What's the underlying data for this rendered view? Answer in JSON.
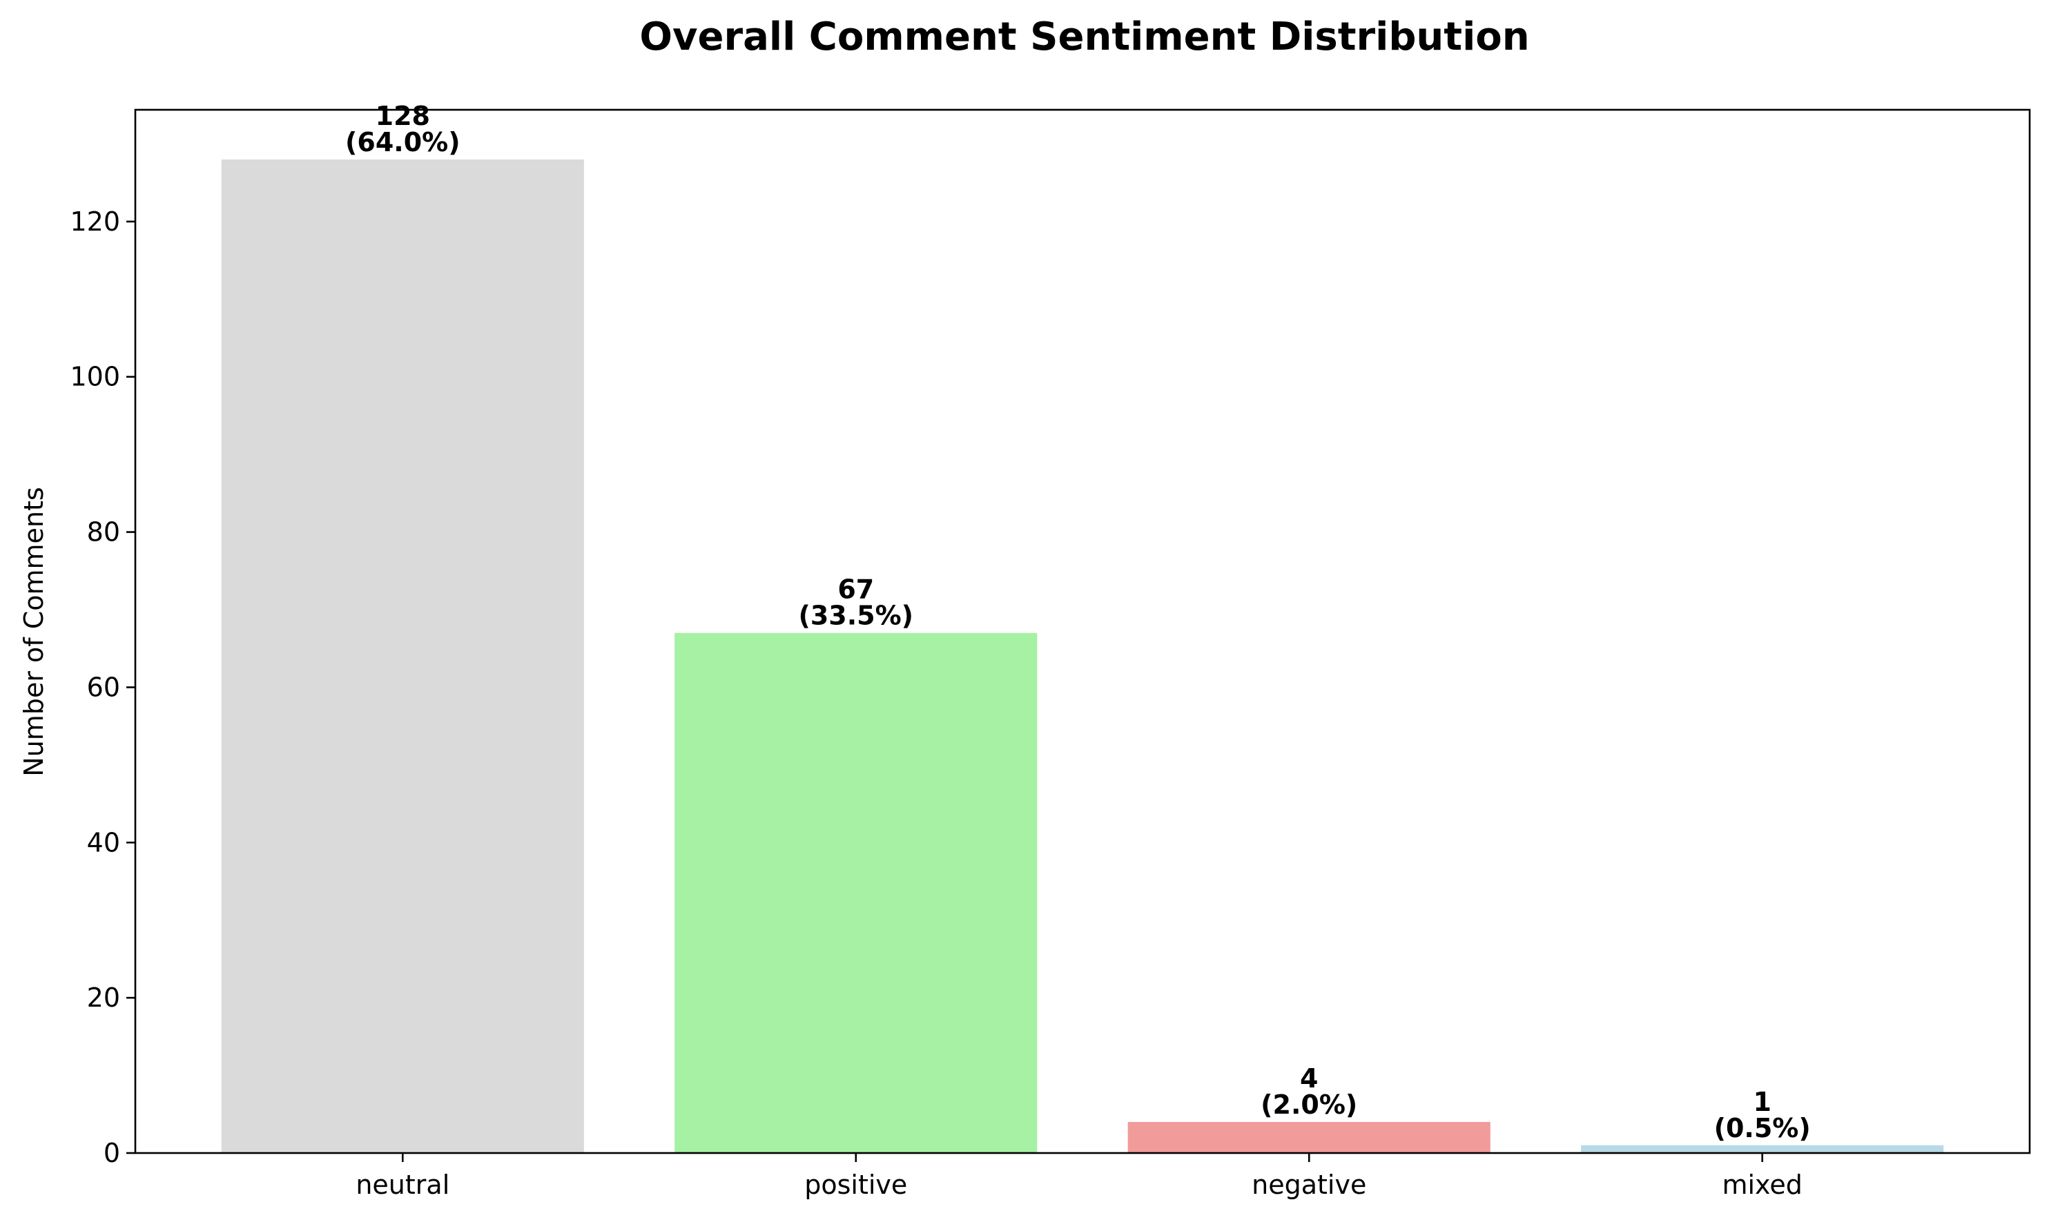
{
  "chart_data": {
    "type": "bar",
    "title": "Overall Comment Sentiment Distribution",
    "xlabel": "",
    "ylabel": "Number of Comments",
    "categories": [
      "neutral",
      "positive",
      "negative",
      "mixed"
    ],
    "values": [
      128,
      67,
      4,
      1
    ],
    "value_labels": [
      "128",
      "67",
      "4",
      "1"
    ],
    "percent_labels": [
      "(64.0%)",
      "(33.5%)",
      "(2.0%)",
      "(0.5%)"
    ],
    "colors": [
      "#dadada",
      "#a6f1a4",
      "#f29b9b",
      "#b8d9e6"
    ],
    "ylim": [
      0,
      134.4
    ],
    "yticks": [
      0,
      20,
      40,
      60,
      80,
      100,
      120
    ],
    "ytick_labels": [
      "0",
      "20",
      "40",
      "60",
      "80",
      "100",
      "120"
    ],
    "grid": false,
    "legend": "none"
  }
}
